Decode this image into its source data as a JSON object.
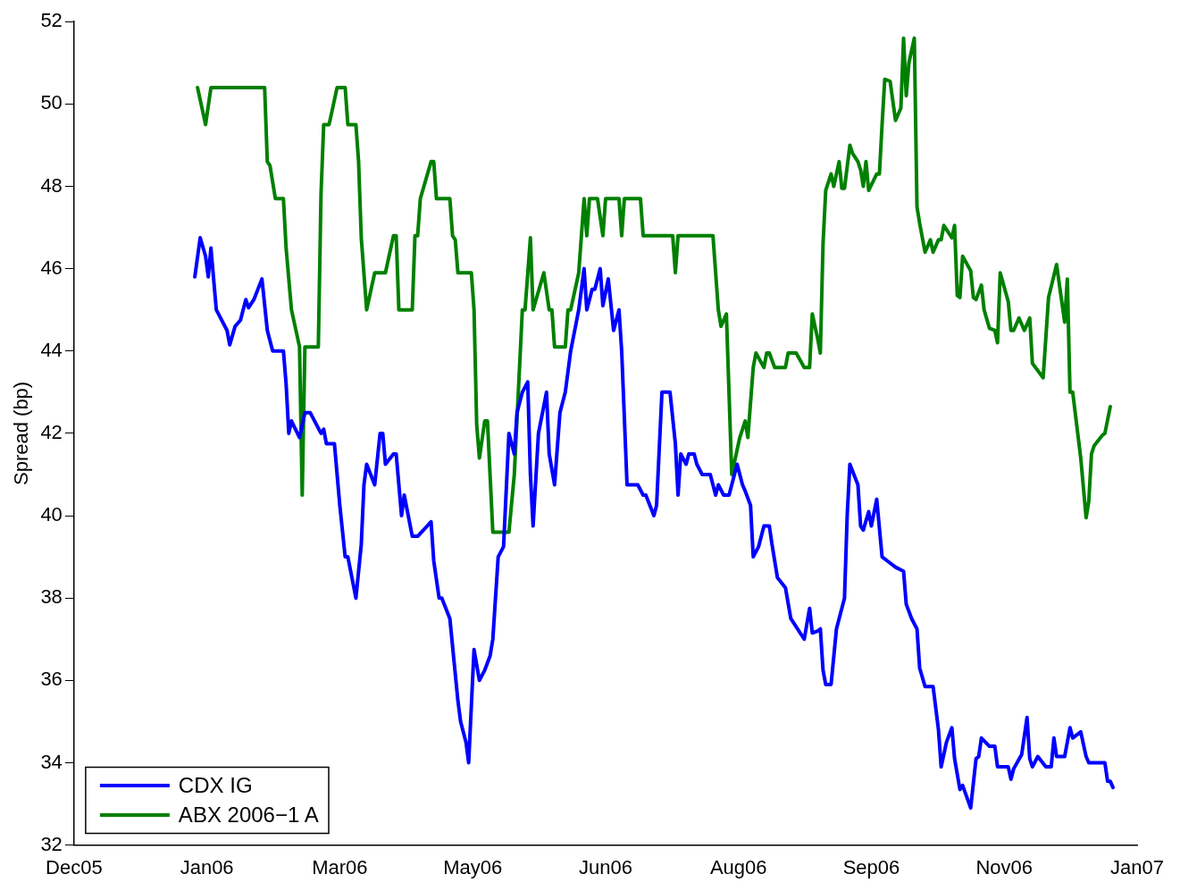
{
  "chart_data": {
    "type": "line",
    "ylabel": "Spread (bp)",
    "legend": "bottom left",
    "grid": false,
    "line_style": "solid",
    "marker": "none",
    "xlim": [
      "2005-12-05",
      "2007-01-05"
    ],
    "xticks": [
      {
        "value": "2005-12-05",
        "label": "Dec05"
      },
      {
        "value": "2006-01-23T12:00",
        "label": "Jan06"
      },
      {
        "value": "2006-03-14",
        "label": "Mar06"
      },
      {
        "value": "2006-05-02T12:00",
        "label": "May06"
      },
      {
        "value": "2006-06-21",
        "label": "Jun06"
      },
      {
        "value": "2006-08-09T12:00",
        "label": "Aug06"
      },
      {
        "value": "2006-09-28",
        "label": "Sep06"
      },
      {
        "value": "2006-11-16T12:00",
        "label": "Nov06"
      },
      {
        "value": "2007-01-05",
        "label": "Jan07"
      }
    ],
    "ylim": [
      32,
      52
    ],
    "yticks": [
      32,
      34,
      36,
      38,
      40,
      42,
      44,
      46,
      48,
      50,
      52
    ],
    "series": [
      {
        "name": "CDX IG",
        "color": "#0000ff",
        "x": [
          "2006-01-19",
          "2006-01-21",
          "2006-01-23",
          "2006-01-24",
          "2006-01-25",
          "2006-01-27",
          "2006-01-31",
          "2006-02-01",
          "2006-02-03",
          "2006-02-05",
          "2006-02-07",
          "2006-02-08",
          "2006-02-10",
          "2006-02-13",
          "2006-02-15",
          "2006-02-17",
          "2006-02-21",
          "2006-02-22",
          "2006-02-23",
          "2006-02-24",
          "2006-02-27",
          "2006-03-01",
          "2006-03-03",
          "2006-03-07",
          "2006-03-08",
          "2006-03-09",
          "2006-03-12",
          "2006-03-14",
          "2006-03-16",
          "2006-03-17",
          "2006-03-20",
          "2006-03-22",
          "2006-03-23",
          "2006-03-24",
          "2006-03-27",
          "2006-03-29",
          "2006-03-30",
          "2006-03-31",
          "2006-04-03",
          "2006-04-04",
          "2006-04-06",
          "2006-04-07",
          "2006-04-10",
          "2006-04-12",
          "2006-04-17",
          "2006-04-18",
          "2006-04-20",
          "2006-04-21",
          "2006-04-24",
          "2006-04-27",
          "2006-04-28",
          "2006-04-30",
          "2006-05-01",
          "2006-05-03",
          "2006-05-05",
          "2006-05-07",
          "2006-05-09",
          "2006-05-10",
          "2006-05-12",
          "2006-05-14",
          "2006-05-16",
          "2006-05-18",
          "2006-05-19",
          "2006-05-21",
          "2006-05-23",
          "2006-05-24",
          "2006-05-25",
          "2006-05-27",
          "2006-05-30",
          "2006-05-31",
          "2006-06-02",
          "2006-06-04",
          "2006-06-06",
          "2006-06-07",
          "2006-06-08",
          "2006-06-11",
          "2006-06-13",
          "2006-06-14",
          "2006-06-16",
          "2006-06-17",
          "2006-06-19",
          "2006-06-20",
          "2006-06-22",
          "2006-06-24",
          "2006-06-26",
          "2006-06-27",
          "2006-06-29",
          "2006-07-03",
          "2006-07-05",
          "2006-07-06",
          "2006-07-09",
          "2006-07-10",
          "2006-07-12",
          "2006-07-15",
          "2006-07-17",
          "2006-07-18",
          "2006-07-19",
          "2006-07-21",
          "2006-07-22",
          "2006-07-24",
          "2006-07-25",
          "2006-07-27",
          "2006-07-30",
          "2006-08-01",
          "2006-08-02",
          "2006-08-04",
          "2006-08-06",
          "2006-08-09",
          "2006-08-11",
          "2006-08-12",
          "2006-08-14",
          "2006-08-15",
          "2006-08-17",
          "2006-08-19",
          "2006-08-21",
          "2006-08-22",
          "2006-08-24",
          "2006-08-27",
          "2006-08-29",
          "2006-09-03",
          "2006-09-05",
          "2006-09-06",
          "2006-09-08",
          "2006-09-09",
          "2006-09-10",
          "2006-09-11",
          "2006-09-13",
          "2006-09-15",
          "2006-09-18",
          "2006-09-19",
          "2006-09-20",
          "2006-09-23",
          "2006-09-24",
          "2006-09-25",
          "2006-09-27",
          "2006-09-28",
          "2006-09-30",
          "2006-10-02",
          "2006-10-04",
          "2006-10-07",
          "2006-10-10",
          "2006-10-11",
          "2006-10-13",
          "2006-10-15",
          "2006-10-16",
          "2006-10-18",
          "2006-10-21",
          "2006-10-23",
          "2006-10-24",
          "2006-10-26",
          "2006-10-28",
          "2006-10-29",
          "2006-10-31",
          "2006-11-01",
          "2006-11-04",
          "2006-11-06",
          "2006-11-07",
          "2006-11-08",
          "2006-11-11",
          "2006-11-13",
          "2006-11-14",
          "2006-11-18",
          "2006-11-19",
          "2006-11-20",
          "2006-11-23",
          "2006-11-25",
          "2006-11-26",
          "2006-11-27",
          "2006-11-29",
          "2006-12-02",
          "2006-12-04",
          "2006-12-05",
          "2006-12-06",
          "2006-12-09",
          "2006-12-11",
          "2006-12-12",
          "2006-12-15",
          "2006-12-17",
          "2006-12-18",
          "2006-12-24",
          "2006-12-25",
          "2006-12-26",
          "2006-12-27"
        ],
        "values": [
          45.8,
          46.75,
          46.3,
          45.8,
          46.5,
          45.0,
          44.5,
          44.15,
          44.6,
          44.75,
          45.25,
          45.05,
          45.25,
          45.75,
          44.5,
          44.0,
          44.0,
          43.2,
          42.0,
          42.3,
          41.9,
          42.5,
          42.5,
          42.0,
          42.1,
          41.75,
          41.75,
          40.25,
          39.0,
          39.0,
          38.0,
          39.3,
          40.75,
          41.25,
          40.75,
          42.0,
          42.0,
          41.25,
          41.5,
          41.5,
          40.0,
          40.5,
          39.5,
          39.5,
          39.85,
          38.9,
          38.0,
          38.0,
          37.5,
          35.5,
          35.0,
          34.5,
          34.0,
          36.75,
          36.0,
          36.25,
          36.6,
          37.0,
          39.0,
          39.25,
          42.0,
          41.5,
          42.5,
          43.0,
          43.25,
          41.0,
          39.75,
          42.0,
          43.0,
          41.5,
          40.75,
          42.5,
          43.0,
          43.5,
          44.0,
          45.0,
          46.0,
          45.0,
          45.5,
          45.5,
          46.0,
          45.1,
          45.75,
          44.5,
          45.0,
          44.0,
          40.75,
          40.75,
          40.5,
          40.5,
          40.0,
          40.25,
          43.0,
          43.0,
          41.75,
          40.5,
          41.5,
          41.25,
          41.5,
          41.5,
          41.25,
          41.0,
          41.0,
          40.5,
          40.75,
          40.5,
          40.5,
          41.25,
          40.75,
          40.6,
          40.25,
          39.0,
          39.25,
          39.75,
          39.75,
          39.3,
          38.5,
          38.25,
          37.5,
          37.0,
          37.75,
          37.15,
          37.2,
          37.25,
          36.25,
          35.9,
          35.9,
          37.25,
          38.0,
          40.0,
          41.25,
          40.75,
          39.75,
          39.65,
          40.1,
          39.75,
          40.4,
          39.0,
          38.9,
          38.75,
          38.65,
          37.85,
          37.5,
          37.25,
          36.3,
          35.85,
          35.85,
          34.8,
          33.9,
          34.5,
          34.85,
          34.1,
          33.35,
          33.45,
          32.9,
          34.1,
          34.15,
          34.6,
          34.4,
          34.4,
          33.9,
          33.9,
          33.6,
          33.85,
          34.2,
          35.1,
          34.1,
          33.9,
          34.15,
          33.9,
          33.9,
          34.6,
          34.15,
          34.15,
          34.85,
          34.6,
          34.75,
          34.15,
          34.0,
          34.0,
          33.55,
          33.55,
          33.4
        ]
      },
      {
        "name": "ABX 2006−1 A",
        "color": "#008000",
        "x": [
          "2006-01-20",
          "2006-01-23",
          "2006-01-25",
          "2006-02-14",
          "2006-02-15",
          "2006-02-16",
          "2006-02-18",
          "2006-02-21",
          "2006-02-22",
          "2006-02-24",
          "2006-02-27",
          "2006-02-28",
          "2006-03-01",
          "2006-03-06",
          "2006-03-07",
          "2006-03-08",
          "2006-03-10",
          "2006-03-13",
          "2006-03-16",
          "2006-03-17",
          "2006-03-20",
          "2006-03-21",
          "2006-03-22",
          "2006-03-24",
          "2006-03-27",
          "2006-03-31",
          "2006-04-03",
          "2006-04-04",
          "2006-04-05",
          "2006-04-10",
          "2006-04-11",
          "2006-04-12",
          "2006-04-13",
          "2006-04-17",
          "2006-04-18",
          "2006-04-19",
          "2006-04-24",
          "2006-04-25",
          "2006-04-26",
          "2006-04-27",
          "2006-05-02",
          "2006-05-03",
          "2006-05-04",
          "2006-05-05",
          "2006-05-07",
          "2006-05-08",
          "2006-05-10",
          "2006-05-16",
          "2006-05-18",
          "2006-05-21",
          "2006-05-22",
          "2006-05-24",
          "2006-05-25",
          "2006-05-29",
          "2006-05-31",
          "2006-06-01",
          "2006-06-02",
          "2006-06-06",
          "2006-06-07",
          "2006-06-08",
          "2006-06-11",
          "2006-06-13",
          "2006-06-14",
          "2006-06-15",
          "2006-06-18",
          "2006-06-20",
          "2006-06-21",
          "2006-06-26",
          "2006-06-27",
          "2006-06-28",
          "2006-07-04",
          "2006-07-05",
          "2006-07-16",
          "2006-07-17",
          "2006-07-18",
          "2006-07-31",
          "2006-08-02",
          "2006-08-03",
          "2006-08-05",
          "2006-08-07",
          "2006-08-10",
          "2006-08-12",
          "2006-08-13",
          "2006-08-15",
          "2006-08-16",
          "2006-08-19",
          "2006-08-20",
          "2006-08-21",
          "2006-08-23",
          "2006-08-27",
          "2006-08-28",
          "2006-08-31",
          "2006-09-03",
          "2006-09-05",
          "2006-09-06",
          "2006-09-08",
          "2006-09-09",
          "2006-09-10",
          "2006-09-11",
          "2006-09-13",
          "2006-09-14",
          "2006-09-16",
          "2006-09-17",
          "2006-09-18",
          "2006-09-20",
          "2006-09-21",
          "2006-09-23",
          "2006-09-24",
          "2006-09-25",
          "2006-09-26",
          "2006-09-27",
          "2006-09-30",
          "2006-10-01",
          "2006-10-02",
          "2006-10-03",
          "2006-10-05",
          "2006-10-07",
          "2006-10-09",
          "2006-10-10",
          "2006-10-11",
          "2006-10-12",
          "2006-10-14",
          "2006-10-15",
          "2006-10-16",
          "2006-10-18",
          "2006-10-20",
          "2006-10-21",
          "2006-10-23",
          "2006-10-24",
          "2006-10-25",
          "2006-10-28",
          "2006-10-29",
          "2006-10-30",
          "2006-10-31",
          "2006-11-01",
          "2006-11-04",
          "2006-11-05",
          "2006-11-06",
          "2006-11-08",
          "2006-11-09",
          "2006-11-11",
          "2006-11-13",
          "2006-11-14",
          "2006-11-15",
          "2006-11-18",
          "2006-11-19",
          "2006-11-20",
          "2006-11-22",
          "2006-11-24",
          "2006-11-26",
          "2006-11-27",
          "2006-12-01",
          "2006-12-03",
          "2006-12-06",
          "2006-12-09",
          "2006-12-10",
          "2006-12-11",
          "2006-12-12",
          "2006-12-15",
          "2006-12-17",
          "2006-12-18",
          "2006-12-19",
          "2006-12-20",
          "2006-12-23",
          "2006-12-24",
          "2006-12-26"
        ],
        "values": [
          50.4,
          49.5,
          50.4,
          50.4,
          48.6,
          48.5,
          47.7,
          47.7,
          46.5,
          45.0,
          44.1,
          40.5,
          44.1,
          44.1,
          47.8,
          49.5,
          49.5,
          50.4,
          50.4,
          49.5,
          49.5,
          48.6,
          46.75,
          45.0,
          45.9,
          45.9,
          46.8,
          46.8,
          45.0,
          45.0,
          46.8,
          46.8,
          47.7,
          48.6,
          48.6,
          47.7,
          47.7,
          46.8,
          46.7,
          45.9,
          45.9,
          45.0,
          42.2,
          41.4,
          42.3,
          42.3,
          39.6,
          39.6,
          41.0,
          45.0,
          45.0,
          46.75,
          45.0,
          45.9,
          45.0,
          45.0,
          44.1,
          44.1,
          45.0,
          45.0,
          45.9,
          47.7,
          46.8,
          47.7,
          47.7,
          46.8,
          47.7,
          47.7,
          46.8,
          47.7,
          47.7,
          46.8,
          46.8,
          45.9,
          46.8,
          46.8,
          45.0,
          44.6,
          44.9,
          41.0,
          41.9,
          42.3,
          41.9,
          43.6,
          43.95,
          43.6,
          43.95,
          43.95,
          43.6,
          43.6,
          43.95,
          43.95,
          43.6,
          43.6,
          44.9,
          44.3,
          43.95,
          46.6,
          47.9,
          48.3,
          48.0,
          48.6,
          47.95,
          47.95,
          49.0,
          48.8,
          48.6,
          48.4,
          48.0,
          48.6,
          47.9,
          48.3,
          48.3,
          49.5,
          50.6,
          50.55,
          49.6,
          49.9,
          51.6,
          50.2,
          51.0,
          51.6,
          47.5,
          47.1,
          46.4,
          46.7,
          46.4,
          46.7,
          46.7,
          47.05,
          46.75,
          47.05,
          45.35,
          45.3,
          46.3,
          45.95,
          45.3,
          45.25,
          45.6,
          45.0,
          44.55,
          44.5,
          44.2,
          45.9,
          45.2,
          44.5,
          44.5,
          44.8,
          44.5,
          44.8,
          43.7,
          43.35,
          45.3,
          46.1,
          44.7,
          45.75,
          43.0,
          43.0,
          41.4,
          39.95,
          40.35,
          41.5,
          41.7,
          41.95,
          42.0,
          42.65
        ]
      }
    ]
  }
}
